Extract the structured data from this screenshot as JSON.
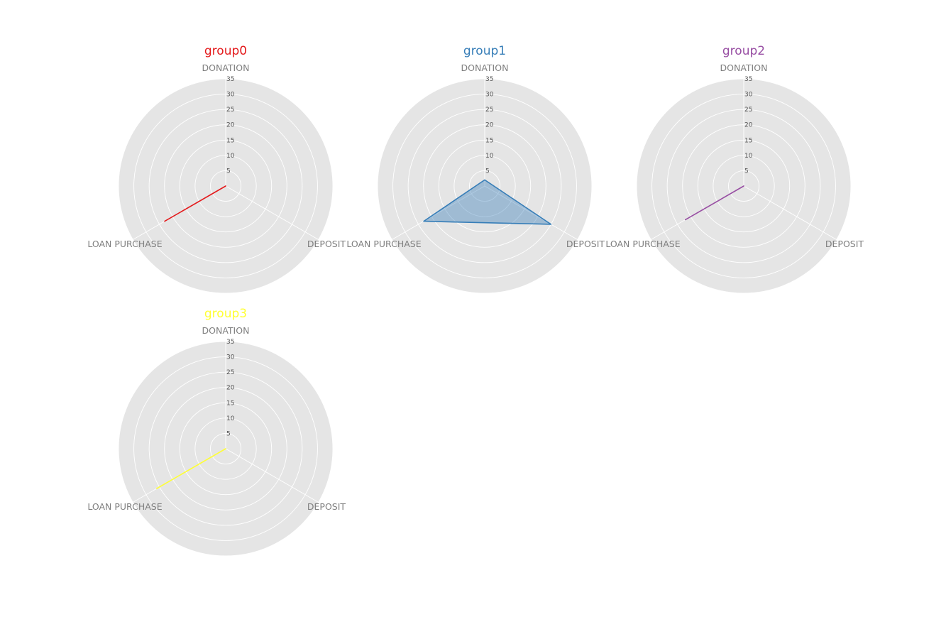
{
  "chart_data": [
    {
      "type": "radar",
      "title": "group0",
      "color": "#e41a1c",
      "filled": false,
      "axes": [
        "DONATION",
        "DEPOSIT",
        "LOAN PURCHASE"
      ],
      "values": [
        0,
        0,
        23
      ],
      "rlim": [
        0,
        35
      ],
      "rticks": [
        5,
        10,
        15,
        20,
        25,
        30,
        35
      ],
      "grid": true
    },
    {
      "type": "radar",
      "title": "group1",
      "color": "#377eb8",
      "filled": true,
      "axes": [
        "DONATION",
        "DEPOSIT",
        "LOAN PURCHASE"
      ],
      "values": [
        2,
        25,
        23
      ],
      "rlim": [
        0,
        35
      ],
      "rticks": [
        5,
        10,
        15,
        20,
        25,
        30,
        35
      ],
      "grid": true
    },
    {
      "type": "radar",
      "title": "group2",
      "color": "#984ea3",
      "filled": false,
      "axes": [
        "DONATION",
        "DEPOSIT",
        "LOAN PURCHASE"
      ],
      "values": [
        0,
        0,
        22
      ],
      "rlim": [
        0,
        35
      ],
      "rticks": [
        5,
        10,
        15,
        20,
        25,
        30,
        35
      ],
      "grid": true
    },
    {
      "type": "radar",
      "title": "group3",
      "color": "#ffff33",
      "filled": false,
      "axes": [
        "DONATION",
        "DEPOSIT",
        "LOAN PURCHASE"
      ],
      "values": [
        0,
        0,
        26
      ],
      "rlim": [
        0,
        35
      ],
      "rticks": [
        5,
        10,
        15,
        20,
        25,
        30,
        35
      ],
      "grid": true
    }
  ]
}
